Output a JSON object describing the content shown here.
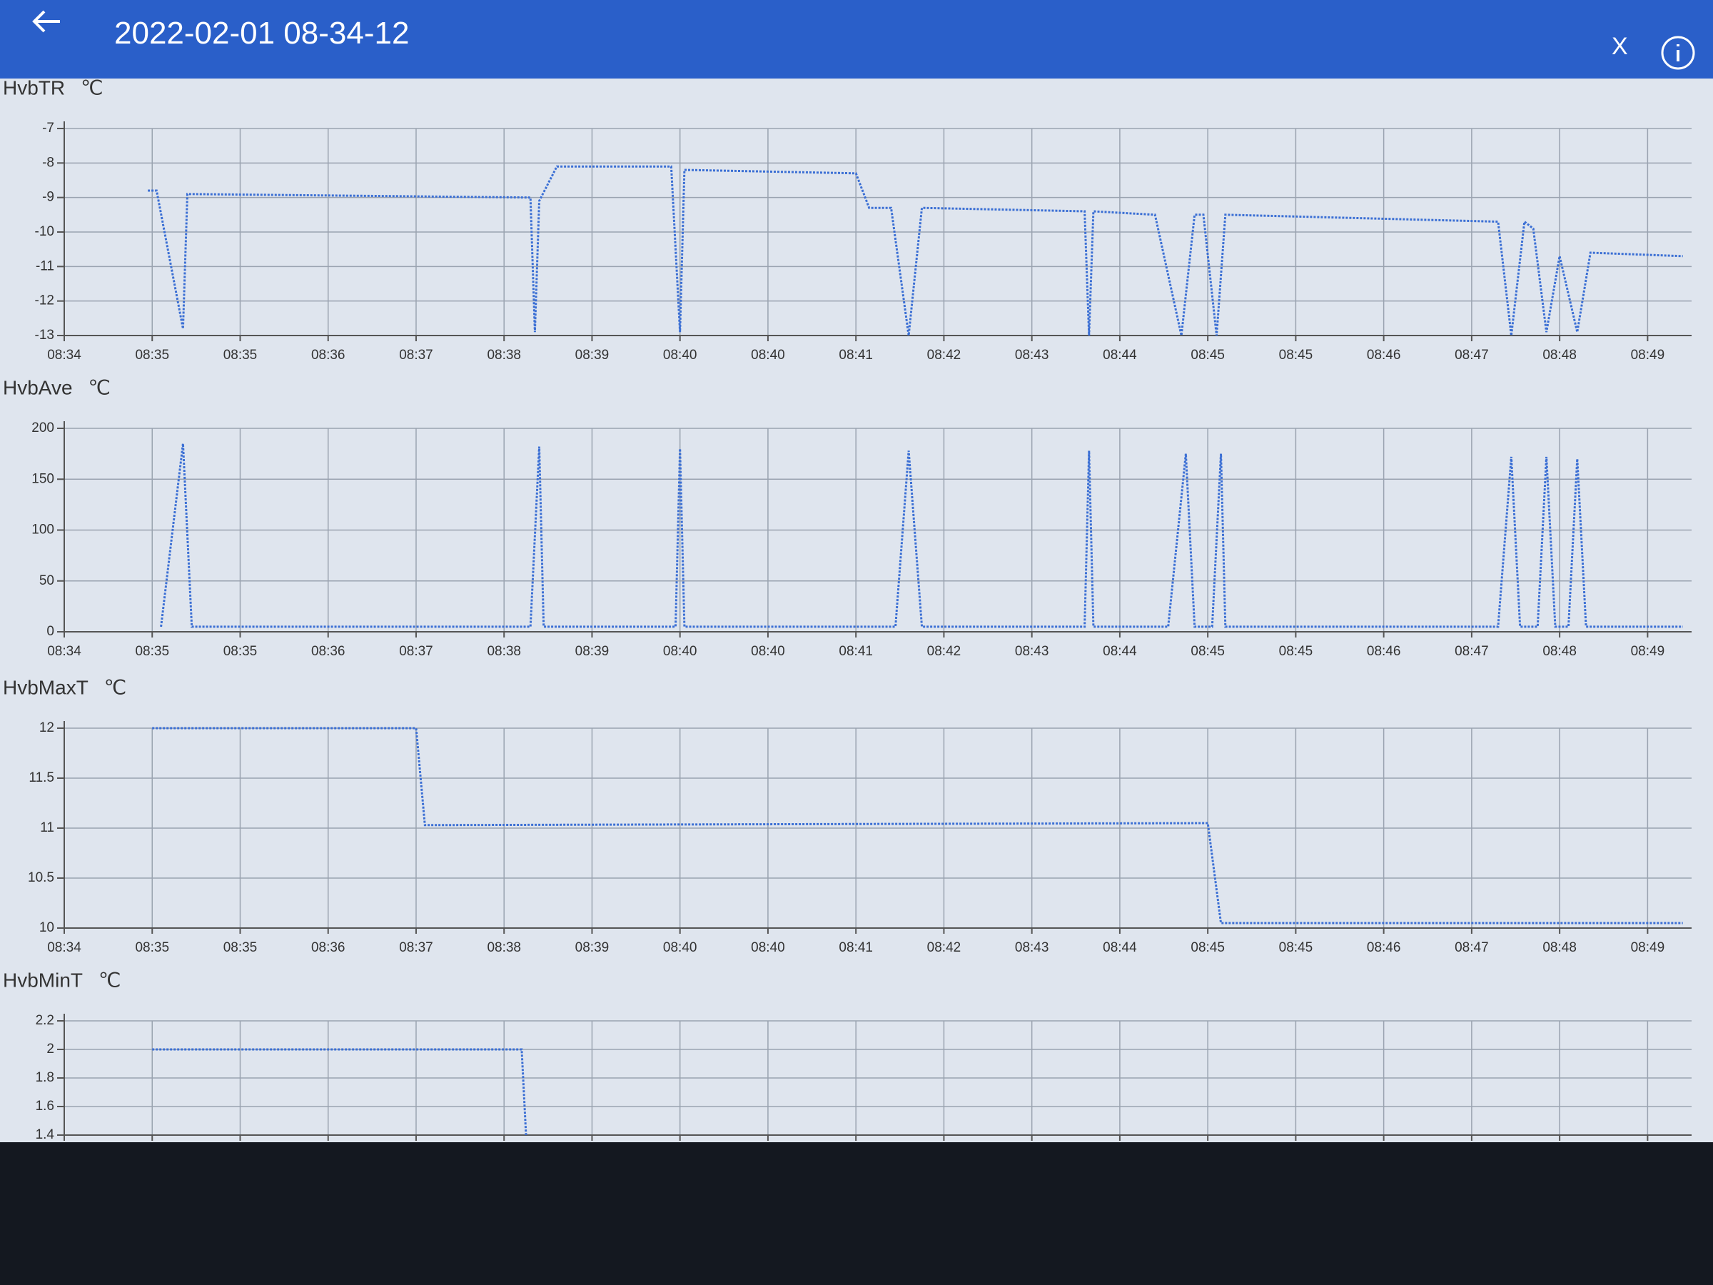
{
  "header": {
    "title": "2022-02-01 08-34-12",
    "close": "X"
  },
  "chart_data": [
    {
      "type": "line",
      "title": "HvbTR",
      "unit": "℃",
      "color": "#3b6fd4",
      "grid": true,
      "xlim": [
        0,
        18.5
      ],
      "xticks": [
        {
          "value": 0,
          "label": "08:34"
        },
        {
          "value": 1,
          "label": "08:35"
        },
        {
          "value": 2,
          "label": "08:35"
        },
        {
          "value": 3,
          "label": "08:36"
        },
        {
          "value": 4,
          "label": "08:37"
        },
        {
          "value": 5,
          "label": "08:38"
        },
        {
          "value": 6,
          "label": "08:39"
        },
        {
          "value": 7,
          "label": "08:40"
        },
        {
          "value": 8,
          "label": "08:40"
        },
        {
          "value": 9,
          "label": "08:41"
        },
        {
          "value": 10,
          "label": "08:42"
        },
        {
          "value": 11,
          "label": "08:43"
        },
        {
          "value": 12,
          "label": "08:44"
        },
        {
          "value": 13,
          "label": "08:45"
        },
        {
          "value": 14,
          "label": "08:45"
        },
        {
          "value": 15,
          "label": "08:46"
        },
        {
          "value": 16,
          "label": "08:47"
        },
        {
          "value": 17,
          "label": "08:48"
        },
        {
          "value": 18,
          "label": "08:49"
        }
      ],
      "ylim": [
        -13,
        -7
      ],
      "yticks": [
        -7,
        -8,
        -9,
        -10,
        -11,
        -12,
        -13
      ],
      "x": [
        0.95,
        1.05,
        1.35,
        1.4,
        5.3,
        5.35,
        5.4,
        5.6,
        6.9,
        7.0,
        7.05,
        9.0,
        9.15,
        9.4,
        9.6,
        9.75,
        11.6,
        11.65,
        11.7,
        12.4,
        12.7,
        12.85,
        12.95,
        13.1,
        13.2,
        16.3,
        16.45,
        16.6,
        16.7,
        16.85,
        17.0,
        17.2,
        17.35,
        18.4
      ],
      "values": [
        -8.8,
        -8.8,
        -12.8,
        -8.9,
        -9.0,
        -12.9,
        -9.1,
        -8.1,
        -8.1,
        -12.9,
        -8.2,
        -8.3,
        -9.3,
        -9.3,
        -13.0,
        -9.3,
        -9.4,
        -13.0,
        -9.4,
        -9.5,
        -13.0,
        -9.5,
        -9.5,
        -13.0,
        -9.5,
        -9.7,
        -13.0,
        -9.7,
        -9.9,
        -12.9,
        -10.7,
        -12.9,
        -10.6,
        -10.7
      ]
    },
    {
      "type": "line",
      "title": "HvbAve",
      "unit": "℃",
      "color": "#3b6fd4",
      "grid": true,
      "xlim": [
        0,
        18.5
      ],
      "xticks": [
        {
          "value": 0,
          "label": "08:34"
        },
        {
          "value": 1,
          "label": "08:35"
        },
        {
          "value": 2,
          "label": "08:35"
        },
        {
          "value": 3,
          "label": "08:36"
        },
        {
          "value": 4,
          "label": "08:37"
        },
        {
          "value": 5,
          "label": "08:38"
        },
        {
          "value": 6,
          "label": "08:39"
        },
        {
          "value": 7,
          "label": "08:40"
        },
        {
          "value": 8,
          "label": "08:40"
        },
        {
          "value": 9,
          "label": "08:41"
        },
        {
          "value": 10,
          "label": "08:42"
        },
        {
          "value": 11,
          "label": "08:43"
        },
        {
          "value": 12,
          "label": "08:44"
        },
        {
          "value": 13,
          "label": "08:45"
        },
        {
          "value": 14,
          "label": "08:45"
        },
        {
          "value": 15,
          "label": "08:46"
        },
        {
          "value": 16,
          "label": "08:47"
        },
        {
          "value": 17,
          "label": "08:48"
        },
        {
          "value": 18,
          "label": "08:49"
        }
      ],
      "ylim": [
        0,
        200
      ],
      "yticks": [
        200,
        150,
        100,
        50,
        0
      ],
      "x": [
        1.1,
        1.35,
        1.45,
        5.3,
        5.4,
        5.45,
        6.95,
        7.0,
        7.05,
        9.45,
        9.6,
        9.75,
        11.6,
        11.65,
        11.7,
        12.55,
        12.75,
        12.85,
        13.05,
        13.15,
        13.2,
        16.3,
        16.45,
        16.55,
        16.75,
        16.85,
        16.95,
        17.1,
        17.2,
        17.3,
        18.4
      ],
      "values": [
        5,
        185,
        5,
        5,
        182,
        5,
        5,
        180,
        5,
        5,
        178,
        5,
        5,
        178,
        5,
        5,
        175,
        5,
        5,
        175,
        5,
        5,
        172,
        5,
        5,
        172,
        5,
        5,
        170,
        5,
        5
      ]
    },
    {
      "type": "line",
      "title": "HvbMaxT",
      "unit": "℃",
      "color": "#3b6fd4",
      "grid": true,
      "xlim": [
        0,
        18.5
      ],
      "xticks": [
        {
          "value": 0,
          "label": "08:34"
        },
        {
          "value": 1,
          "label": "08:35"
        },
        {
          "value": 2,
          "label": "08:35"
        },
        {
          "value": 3,
          "label": "08:36"
        },
        {
          "value": 4,
          "label": "08:37"
        },
        {
          "value": 5,
          "label": "08:38"
        },
        {
          "value": 6,
          "label": "08:39"
        },
        {
          "value": 7,
          "label": "08:40"
        },
        {
          "value": 8,
          "label": "08:40"
        },
        {
          "value": 9,
          "label": "08:41"
        },
        {
          "value": 10,
          "label": "08:42"
        },
        {
          "value": 11,
          "label": "08:43"
        },
        {
          "value": 12,
          "label": "08:44"
        },
        {
          "value": 13,
          "label": "08:45"
        },
        {
          "value": 14,
          "label": "08:45"
        },
        {
          "value": 15,
          "label": "08:46"
        },
        {
          "value": 16,
          "label": "08:47"
        },
        {
          "value": 17,
          "label": "08:48"
        },
        {
          "value": 18,
          "label": "08:49"
        }
      ],
      "ylim": [
        10,
        12
      ],
      "yticks": [
        12,
        11.5,
        11,
        10.5,
        10
      ],
      "x": [
        1.0,
        4.0,
        4.1,
        13.0,
        13.15,
        18.4
      ],
      "values": [
        12,
        12,
        11.03,
        11.05,
        10.05,
        10.05
      ]
    },
    {
      "type": "line",
      "title": "HvbMinT",
      "unit": "℃",
      "color": "#3b6fd4",
      "grid": true,
      "xlim": [
        0,
        18.5
      ],
      "xticks": [
        0,
        1,
        2,
        3,
        4,
        5,
        6,
        7,
        8,
        9,
        10,
        11,
        12,
        13,
        14,
        15,
        16,
        17,
        18
      ],
      "ylim": [
        1.4,
        2.2
      ],
      "yticks": [
        2.2,
        2,
        1.8,
        1.6,
        1.4
      ],
      "x": [
        1.0,
        5.2,
        5.25
      ],
      "values": [
        2,
        2,
        1.4
      ]
    }
  ]
}
